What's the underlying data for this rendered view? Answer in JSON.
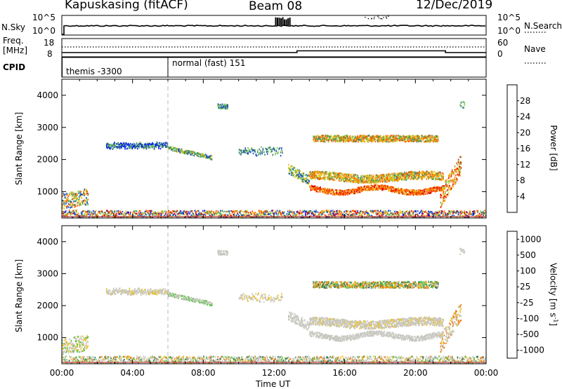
{
  "header": {
    "station": "Kapuskasing (fitACF)",
    "beam": "Beam 08",
    "date": "12/Dec/2019"
  },
  "summary_panels": {
    "nsky": {
      "label": "N.Sky",
      "tick_top": "10^5",
      "tick_bottom": "10^0",
      "right_tick_top": "10^5",
      "right_tick_bottom": "10^0",
      "right_label": "N.Search"
    },
    "freq": {
      "label_line1": "Freq.",
      "label_line2": "[MHz]",
      "tick_top": "18",
      "tick_bottom": "8",
      "right_tick_top": "60",
      "right_tick_bottom": "0",
      "right_label": "Nave"
    },
    "cpid": {
      "label": "CPID",
      "segment1": "themis -3300",
      "segment2": "normal (fast) 151"
    }
  },
  "x_axis": {
    "label": "Time UT",
    "ticks": [
      "00:00",
      "04:00",
      "08:00",
      "12:00",
      "16:00",
      "20:00",
      "00:00"
    ],
    "range_hours": [
      0,
      24
    ]
  },
  "power_colorbar": {
    "label": "Power [dB]",
    "ticks": [
      "28",
      "24",
      "20",
      "16",
      "12",
      "8",
      "4"
    ],
    "colors": [
      "#e00000",
      "#ff5a00",
      "#f08a10",
      "#f0c010",
      "#7ec850",
      "#3a8a6a",
      "#1c4ec0",
      "#0018ff"
    ]
  },
  "velocity_colorbar": {
    "label": "Velocity [m s",
    "label_sup": "-1",
    "label_end": "]",
    "ticks": [
      "1000",
      "500",
      "100",
      "25",
      "-25",
      "-100",
      "-500",
      "-1000"
    ],
    "colors": [
      "#1428c8",
      "#2a5ad8",
      "#2a7a5a",
      "#56c040",
      "#c8c8c0",
      "#f0c020",
      "#f07a10",
      "#e00000"
    ]
  },
  "colors": {
    "frame": "#000000",
    "ground_scatter": "#a0a0a0",
    "dashed_line": "#bbbbbb"
  },
  "chart_data": [
    {
      "type": "heatmap",
      "title": "Power [dB]",
      "xlabel": "Time UT",
      "ylabel": "Slant Range [km]",
      "xlim_hours": [
        0,
        24
      ],
      "ylim": [
        180,
        4500
      ],
      "yticks": [
        1000,
        2000,
        3000,
        4000
      ],
      "yticklabels": [
        "1000",
        "2000",
        "3000",
        "4000"
      ],
      "xticklabels": [
        "00:00",
        "04:00",
        "08:00",
        "12:00",
        "16:00",
        "20:00",
        "00:00"
      ],
      "grid": false,
      "colorbar_ticks": [
        "28",
        "24",
        "20",
        "16",
        "12",
        "8",
        "4"
      ]
    },
    {
      "type": "heatmap",
      "title": "Velocity [m s-1]",
      "xlabel": "Time UT",
      "ylabel": "Slant Range [km]",
      "xlim_hours": [
        0,
        24
      ],
      "ylim": [
        180,
        4500
      ],
      "yticks": [
        1000,
        2000,
        3000,
        4000
      ],
      "yticklabels": [
        "1000",
        "2000",
        "3000",
        "4000"
      ],
      "xticklabels": [
        "00:00",
        "04:00",
        "08:00",
        "12:00",
        "16:00",
        "20:00",
        "00:00"
      ],
      "grid": false,
      "colorbar_ticks": [
        "1000",
        "500",
        "100",
        "25",
        "-25",
        "-100",
        "-500",
        "-1000"
      ]
    }
  ]
}
